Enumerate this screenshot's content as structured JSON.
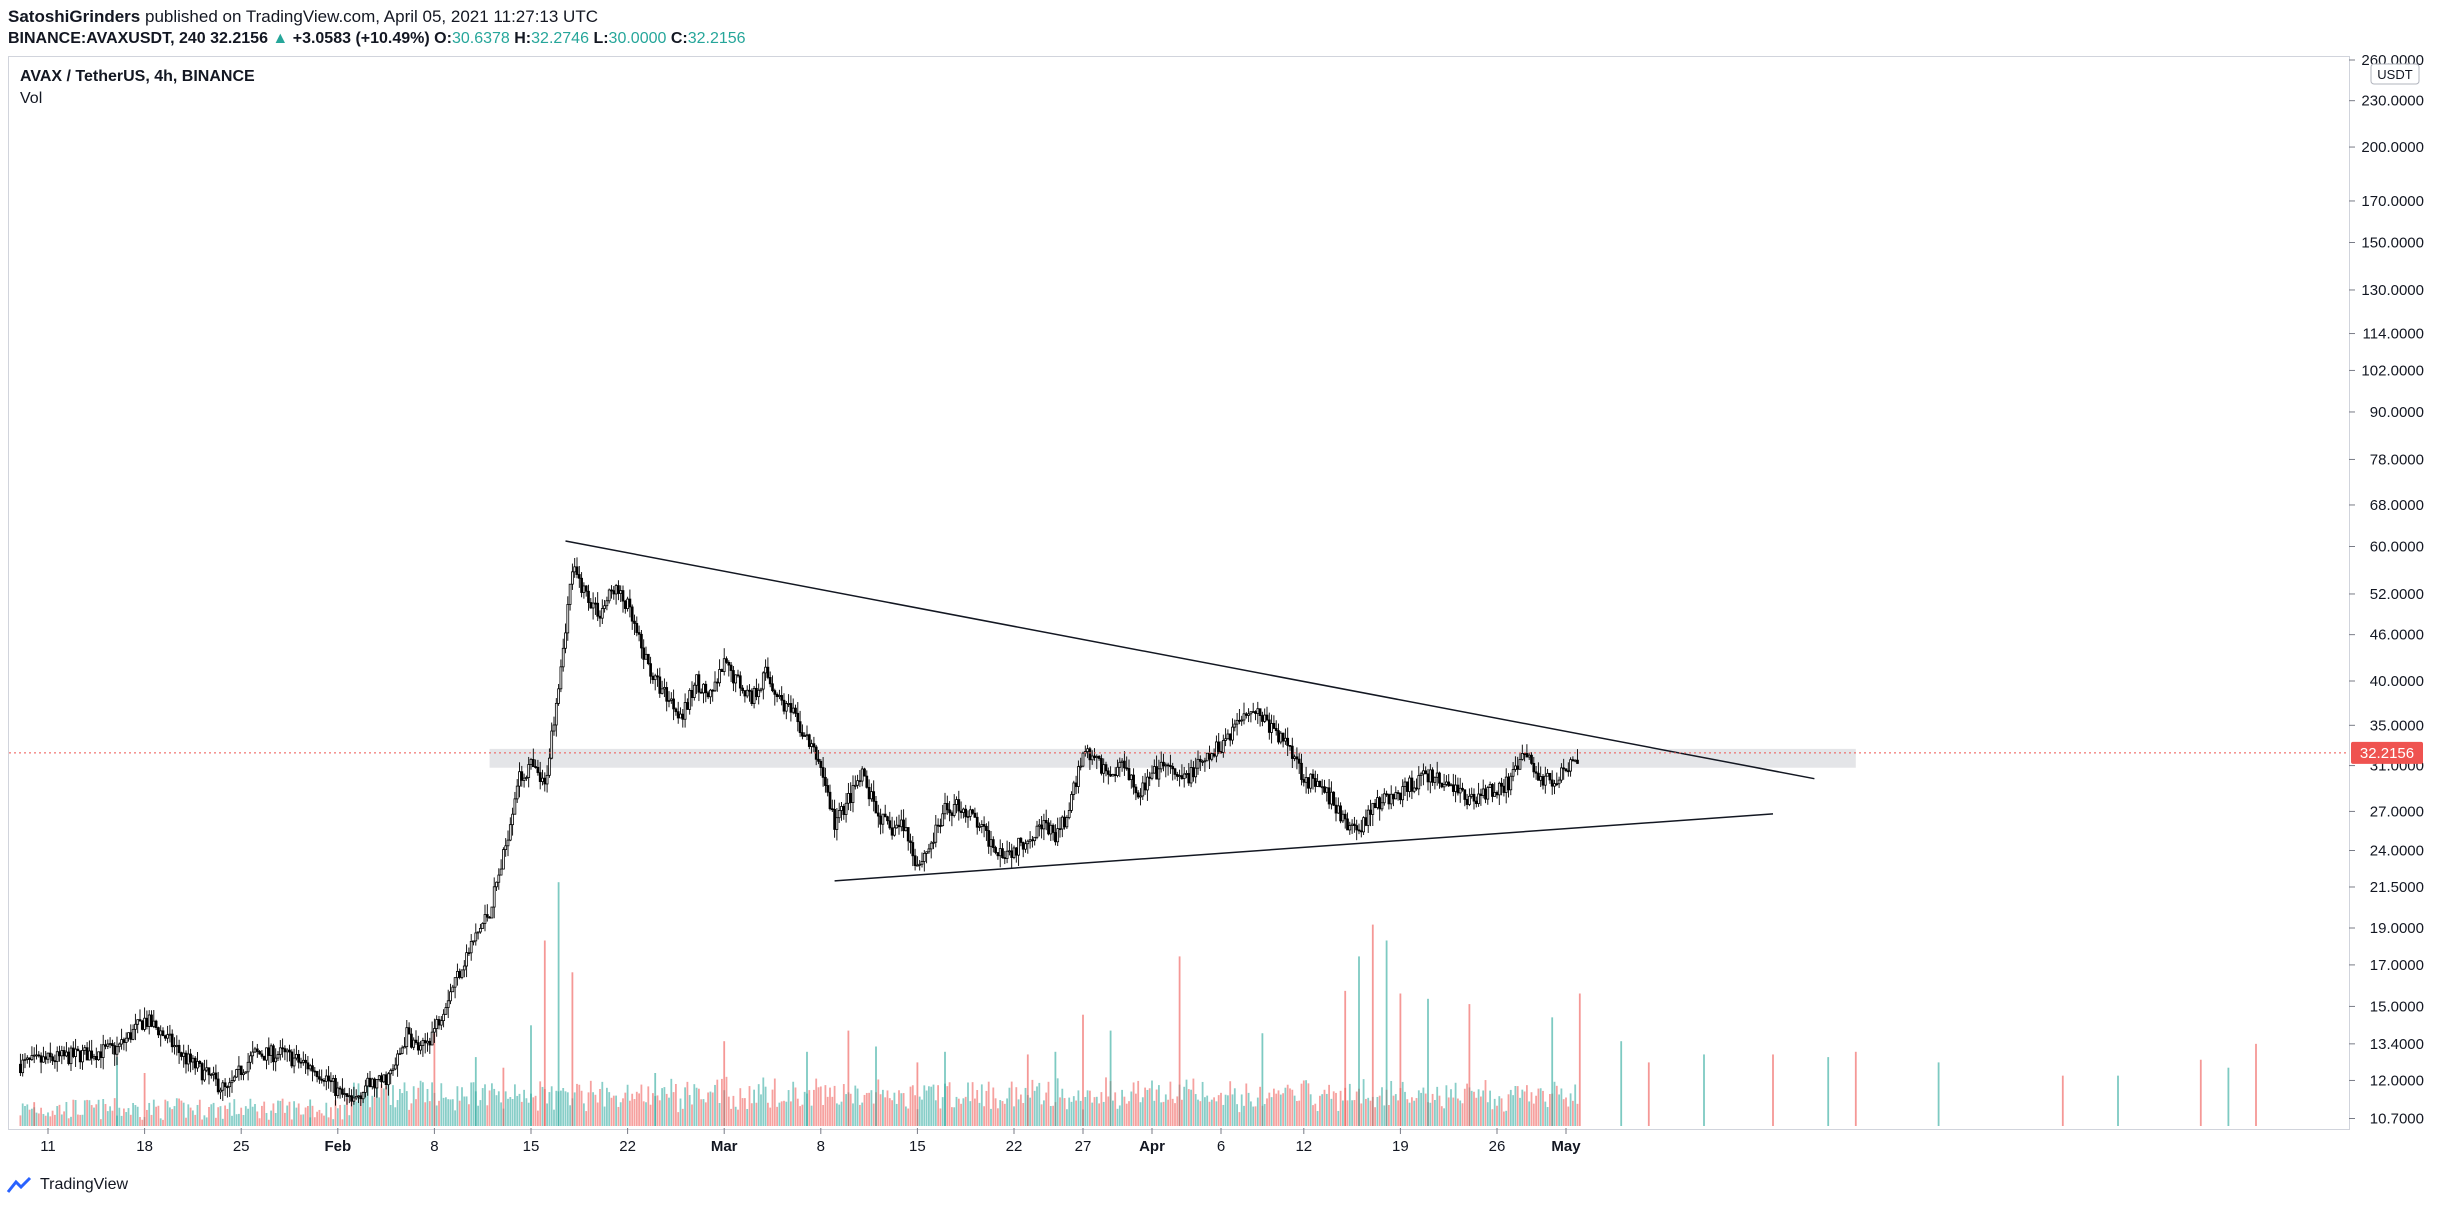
{
  "header": {
    "author": "SatoshiGrinders",
    "published": "published on TradingView.com, April 05, 2021 11:27:13 UTC"
  },
  "ohlc": {
    "symbol": "BINANCE:AVAXUSDT, 240",
    "last": "32.2156",
    "change": "+3.0583 (+10.49%)",
    "open_label": "O:",
    "open": "30.6378",
    "high_label": "H:",
    "high": "32.2746",
    "low_label": "L:",
    "low": "30.0000",
    "close_label": "C:",
    "close": "32.2156"
  },
  "legend": {
    "pair": "AVAX / TetherUS, 4h, BINANCE",
    "vol": "Vol"
  },
  "footer": {
    "brand": "TradingView"
  },
  "chart_data": {
    "type": "candlestick",
    "title": "AVAX / TetherUS, 4h, BINANCE",
    "scale": "log",
    "currency": "USDT",
    "last_price_label": "32.2156",
    "colors": {
      "up": "#ffffff",
      "down": "#000000",
      "vol_up": "#26a69a",
      "vol_down": "#ef5350",
      "last": "#ef5350"
    },
    "y_ticks": [
      "10.7000",
      "12.0000",
      "13.4000",
      "15.0000",
      "17.0000",
      "19.0000",
      "21.5000",
      "24.0000",
      "27.0000",
      "31.0000",
      "35.0000",
      "40.0000",
      "46.0000",
      "52.0000",
      "60.0000",
      "68.0000",
      "78.0000",
      "90.0000",
      "102.0000",
      "114.0000",
      "130.0000",
      "150.0000",
      "170.0000",
      "200.0000",
      "230.0000",
      "260.0000"
    ],
    "x_ticks": [
      {
        "label": "11",
        "day": 0
      },
      {
        "label": "18",
        "day": 7
      },
      {
        "label": "25",
        "day": 14
      },
      {
        "label": "Feb",
        "day": 21,
        "bold": true
      },
      {
        "label": "8",
        "day": 28
      },
      {
        "label": "15",
        "day": 35
      },
      {
        "label": "22",
        "day": 42
      },
      {
        "label": "Mar",
        "day": 49,
        "bold": true
      },
      {
        "label": "8",
        "day": 56
      },
      {
        "label": "15",
        "day": 63
      },
      {
        "label": "22",
        "day": 70
      },
      {
        "label": "27",
        "day": 75
      },
      {
        "label": "Apr",
        "day": 80,
        "bold": true
      },
      {
        "label": "6",
        "day": 85
      },
      {
        "label": "12",
        "day": 91
      },
      {
        "label": "19",
        "day": 98
      },
      {
        "label": "26",
        "day": 105
      },
      {
        "label": "May",
        "day": 110,
        "bold": true
      }
    ],
    "price_path": [
      [
        -2,
        12.6
      ],
      [
        5,
        13.2
      ],
      [
        7,
        14.4
      ],
      [
        8,
        14.0
      ],
      [
        10,
        12.8
      ],
      [
        12,
        12.0
      ],
      [
        13,
        11.6
      ],
      [
        14,
        12.4
      ],
      [
        15,
        13.0
      ],
      [
        17,
        13.0
      ],
      [
        19,
        12.5
      ],
      [
        20,
        12.2
      ],
      [
        21,
        11.6
      ],
      [
        22,
        11.2
      ],
      [
        23,
        11.8
      ],
      [
        24,
        11.9
      ],
      [
        25,
        12.3
      ],
      [
        26,
        13.8
      ],
      [
        27,
        13.1
      ],
      [
        28,
        14.0
      ],
      [
        29,
        15.5
      ],
      [
        30,
        17.0
      ],
      [
        31,
        18.5
      ],
      [
        32,
        20.0
      ],
      [
        33,
        23.5
      ],
      [
        34,
        29.5
      ],
      [
        35,
        31.0
      ],
      [
        36,
        29.0
      ],
      [
        37,
        40.0
      ],
      [
        38,
        56.0
      ],
      [
        39,
        52.0
      ],
      [
        40,
        49.0
      ],
      [
        41,
        53.0
      ],
      [
        42,
        50.0
      ],
      [
        43,
        44.0
      ],
      [
        44,
        40.0
      ],
      [
        45,
        38.0
      ],
      [
        46,
        36.0
      ],
      [
        47,
        40.0
      ],
      [
        48,
        38.0
      ],
      [
        49,
        42.0
      ],
      [
        50,
        40.0
      ],
      [
        51,
        38.0
      ],
      [
        52,
        41.0
      ],
      [
        53,
        38.0
      ],
      [
        54,
        36.0
      ],
      [
        55,
        33.5
      ],
      [
        56,
        31.0
      ],
      [
        57,
        26.0
      ],
      [
        58,
        28.0
      ],
      [
        59,
        30.0
      ],
      [
        60,
        27.0
      ],
      [
        61,
        25.5
      ],
      [
        62,
        26.0
      ],
      [
        63,
        23.0
      ],
      [
        64,
        24.5
      ],
      [
        65,
        27.0
      ],
      [
        66,
        27.5
      ],
      [
        67,
        26.5
      ],
      [
        68,
        25.0
      ],
      [
        69,
        24.0
      ],
      [
        70,
        24.0
      ],
      [
        71,
        25.0
      ],
      [
        72,
        26.0
      ],
      [
        73,
        25.0
      ],
      [
        74,
        27.0
      ],
      [
        75,
        32.5
      ],
      [
        76,
        31.5
      ],
      [
        77,
        30.0
      ],
      [
        78,
        31.5
      ],
      [
        79,
        28.5
      ],
      [
        80,
        30.0
      ],
      [
        81,
        31.0
      ],
      [
        82,
        29.5
      ],
      [
        83,
        30.5
      ],
      [
        84,
        31.5
      ],
      [
        85,
        33.0
      ],
      [
        86,
        35.0
      ],
      [
        87,
        37.0
      ],
      [
        88,
        36.0
      ],
      [
        89,
        34.0
      ],
      [
        90,
        33.0
      ],
      [
        91,
        30.0
      ],
      [
        92,
        29.0
      ],
      [
        93,
        28.0
      ],
      [
        94,
        26.0
      ],
      [
        95,
        25.5
      ],
      [
        96,
        27.5
      ],
      [
        97,
        28.0
      ],
      [
        98,
        28.5
      ],
      [
        99,
        29.5
      ],
      [
        100,
        30.0
      ],
      [
        101,
        29.5
      ],
      [
        102,
        29.0
      ],
      [
        103,
        28.0
      ],
      [
        104,
        28.5
      ],
      [
        105,
        29.0
      ],
      [
        106,
        29.5
      ],
      [
        107,
        32.2
      ],
      [
        108,
        30.0
      ],
      [
        109,
        29.5
      ],
      [
        110,
        31.0
      ],
      [
        111,
        32.2
      ]
    ],
    "volume_spikes": [
      [
        -1,
        9
      ],
      [
        5,
        26
      ],
      [
        7,
        20
      ],
      [
        19,
        10
      ],
      [
        28,
        35
      ],
      [
        31,
        26
      ],
      [
        33,
        22
      ],
      [
        35,
        38
      ],
      [
        36,
        70
      ],
      [
        37,
        92
      ],
      [
        38,
        58
      ],
      [
        44,
        20
      ],
      [
        49,
        32
      ],
      [
        55,
        28
      ],
      [
        58,
        36
      ],
      [
        60,
        30
      ],
      [
        63,
        24
      ],
      [
        65,
        28
      ],
      [
        71,
        27
      ],
      [
        73,
        28
      ],
      [
        75,
        42
      ],
      [
        77,
        36
      ],
      [
        82,
        64
      ],
      [
        88,
        35
      ],
      [
        94,
        51
      ],
      [
        95,
        64
      ],
      [
        96,
        76
      ],
      [
        97,
        70
      ],
      [
        98,
        50
      ],
      [
        100,
        48
      ],
      [
        103,
        46
      ],
      [
        109,
        41
      ],
      [
        111,
        50
      ],
      [
        114,
        32
      ],
      [
        116,
        24
      ],
      [
        120,
        27
      ],
      [
        125,
        27
      ],
      [
        129,
        26
      ],
      [
        131,
        28
      ],
      [
        137,
        24
      ],
      [
        146,
        19
      ],
      [
        150,
        19
      ],
      [
        156,
        25
      ],
      [
        158,
        22
      ],
      [
        160,
        31
      ]
    ],
    "trendlines": [
      {
        "name": "upper-trendline",
        "from": [
          37.5,
          61.0
        ],
        "to": [
          128,
          29.8
        ]
      },
      {
        "name": "lower-trendline",
        "from": [
          57,
          21.9
        ],
        "to": [
          125,
          26.8
        ]
      }
    ],
    "resistance_zone": {
      "low": 30.8,
      "high": 32.6,
      "from_day": 32,
      "to_day": 131
    }
  }
}
